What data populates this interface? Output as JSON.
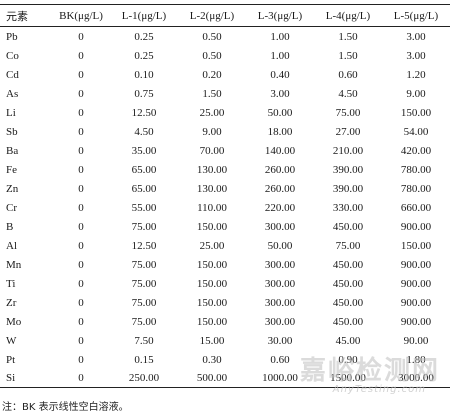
{
  "table": {
    "headers": [
      "元素",
      "BK(μg/L)",
      "L-1(μg/L)",
      "L-2(μg/L)",
      "L-3(μg/L)",
      "L-4(μg/L)",
      "L-5(μg/L)"
    ],
    "rows": [
      [
        "Pb",
        "0",
        "0.25",
        "0.50",
        "1.00",
        "1.50",
        "3.00"
      ],
      [
        "Co",
        "0",
        "0.25",
        "0.50",
        "1.00",
        "1.50",
        "3.00"
      ],
      [
        "Cd",
        "0",
        "0.10",
        "0.20",
        "0.40",
        "0.60",
        "1.20"
      ],
      [
        "As",
        "0",
        "0.75",
        "1.50",
        "3.00",
        "4.50",
        "9.00"
      ],
      [
        "Li",
        "0",
        "12.50",
        "25.00",
        "50.00",
        "75.00",
        "150.00"
      ],
      [
        "Sb",
        "0",
        "4.50",
        "9.00",
        "18.00",
        "27.00",
        "54.00"
      ],
      [
        "Ba",
        "0",
        "35.00",
        "70.00",
        "140.00",
        "210.00",
        "420.00"
      ],
      [
        "Fe",
        "0",
        "65.00",
        "130.00",
        "260.00",
        "390.00",
        "780.00"
      ],
      [
        "Zn",
        "0",
        "65.00",
        "130.00",
        "260.00",
        "390.00",
        "780.00"
      ],
      [
        "Cr",
        "0",
        "55.00",
        "110.00",
        "220.00",
        "330.00",
        "660.00"
      ],
      [
        "B",
        "0",
        "75.00",
        "150.00",
        "300.00",
        "450.00",
        "900.00"
      ],
      [
        "Al",
        "0",
        "12.50",
        "25.00",
        "50.00",
        "75.00",
        "150.00"
      ],
      [
        "Mn",
        "0",
        "75.00",
        "150.00",
        "300.00",
        "450.00",
        "900.00"
      ],
      [
        "Ti",
        "0",
        "75.00",
        "150.00",
        "300.00",
        "450.00",
        "900.00"
      ],
      [
        "Zr",
        "0",
        "75.00",
        "150.00",
        "300.00",
        "450.00",
        "900.00"
      ],
      [
        "Mo",
        "0",
        "75.00",
        "150.00",
        "300.00",
        "450.00",
        "900.00"
      ],
      [
        "W",
        "0",
        "7.50",
        "15.00",
        "30.00",
        "45.00",
        "90.00"
      ],
      [
        "Pt",
        "0",
        "0.15",
        "0.30",
        "0.60",
        "0.90",
        "1.80"
      ],
      [
        "Si",
        "0",
        "250.00",
        "500.00",
        "1000.00",
        "1500.00",
        "3000.00"
      ]
    ]
  },
  "note": "注：BK 表示线性空白溶液。",
  "watermark": {
    "main": "嘉峪检测网",
    "sub": "AnyTesting.com"
  }
}
